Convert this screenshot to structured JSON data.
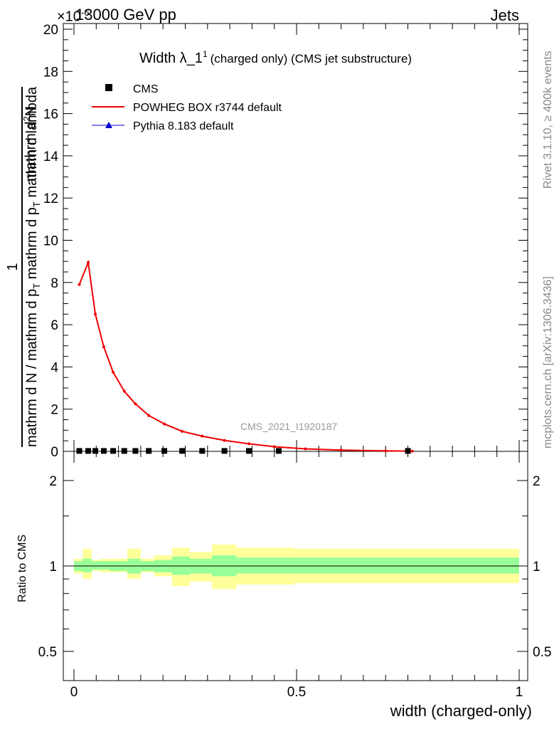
{
  "header": {
    "energy_label": "13000 GeV pp",
    "process_label": "Jets",
    "exponent_label": "×10",
    "exponent_power": "-6"
  },
  "side_labels": {
    "rivet": "Rivet 3.1.10, ≥ 400k events",
    "mcplots": "mcplots.cern.ch [arXiv:1306.3436]"
  },
  "plot": {
    "title_main": "Width λ_1",
    "title_sup": "1",
    "title_rest": "(charged only) (CMS jet substructure)",
    "watermark": "CMS_2021_I1920187",
    "legend": [
      {
        "label": "CMS",
        "marker": "square",
        "color": "#000000"
      },
      {
        "label": "POWHEG BOX r3744 default",
        "marker": "line",
        "color": "#ee0000"
      },
      {
        "label": "Pythia 8.183 default",
        "marker": "triangle",
        "color": "#0000cc"
      }
    ],
    "ylabel": {
      "numerator": "1",
      "num_denom": "mathrm d N / mathrm d p",
      "num_denom_sub": "T",
      "num_denom_end": " mathrm d p",
      "num_denom_sub2": "T",
      "num_denom_tail": " mathrm d lambda",
      "denominator_head": "mathrm d",
      "denominator_sup": "2",
      "denominator_tail": "N"
    },
    "ratio_ylabel": "Ratio to CMS",
    "xlabel": "width (charged-only)"
  },
  "chart_data": [
    {
      "type": "line",
      "panel": "main",
      "title": "Width λ_1^1 (charged only) (CMS jet substructure)",
      "xlabel": "width (charged-only)",
      "ylabel": "1 / (mathrm d N / mathrm d p_T mathrm d p_T mathrm d lambda) · mathrm d^2N",
      "y_scale_factor": "×10^-6",
      "xlim": [
        0,
        1
      ],
      "ylim": [
        0,
        20
      ],
      "x_ticks": [
        "0",
        "0.5",
        "1"
      ],
      "y_ticks": [
        "0",
        "2",
        "4",
        "6",
        "8",
        "10",
        "12",
        "14",
        "16",
        "18",
        "20"
      ],
      "series": [
        {
          "name": "POWHEG BOX r3744 default",
          "color": "#ee0000",
          "x": [
            0.012,
            0.032,
            0.048,
            0.067,
            0.088,
            0.113,
            0.138,
            0.168,
            0.203,
            0.243,
            0.288,
            0.338,
            0.393,
            0.45,
            0.52,
            0.6,
            0.7,
            0.76
          ],
          "values": [
            7.9,
            8.95,
            6.5,
            4.95,
            3.75,
            2.85,
            2.25,
            1.7,
            1.3,
            0.95,
            0.72,
            0.52,
            0.36,
            0.22,
            0.12,
            0.06,
            0.025,
            0.01
          ]
        },
        {
          "name": "CMS",
          "color": "#000000",
          "x": [
            0.012,
            0.032,
            0.048,
            0.067,
            0.088,
            0.113,
            0.138,
            0.168,
            0.203,
            0.243,
            0.288,
            0.338,
            0.393,
            0.46,
            0.75
          ],
          "values": [
            0.02,
            0.02,
            0.02,
            0.02,
            0.02,
            0.02,
            0.02,
            0.02,
            0.02,
            0.02,
            0.02,
            0.02,
            0.02,
            0.02,
            0.02
          ]
        }
      ]
    },
    {
      "type": "area",
      "panel": "ratio",
      "ylabel": "Ratio to CMS",
      "xlabel": "width (charged-only)",
      "xlim": [
        0,
        1
      ],
      "ylim": [
        0.4,
        2.4
      ],
      "y_scale": "log",
      "y_ticks": [
        "0.5",
        "1",
        "2"
      ],
      "reference": 1.0,
      "bins": [
        {
          "x0": 0.0,
          "x1": 0.02,
          "green": [
            0.96,
            1.04
          ],
          "yellow": [
            0.94,
            1.06
          ]
        },
        {
          "x0": 0.02,
          "x1": 0.04,
          "green": [
            0.95,
            1.06
          ],
          "yellow": [
            0.9,
            1.15
          ]
        },
        {
          "x0": 0.04,
          "x1": 0.06,
          "green": [
            0.97,
            1.04
          ],
          "yellow": [
            0.96,
            1.05
          ]
        },
        {
          "x0": 0.06,
          "x1": 0.08,
          "green": [
            0.97,
            1.04
          ],
          "yellow": [
            0.95,
            1.06
          ]
        },
        {
          "x0": 0.08,
          "x1": 0.12,
          "green": [
            0.96,
            1.04
          ],
          "yellow": [
            0.95,
            1.06
          ]
        },
        {
          "x0": 0.12,
          "x1": 0.15,
          "green": [
            0.94,
            1.06
          ],
          "yellow": [
            0.9,
            1.15
          ]
        },
        {
          "x0": 0.15,
          "x1": 0.18,
          "green": [
            0.96,
            1.04
          ],
          "yellow": [
            0.95,
            1.06
          ]
        },
        {
          "x0": 0.18,
          "x1": 0.22,
          "green": [
            0.95,
            1.05
          ],
          "yellow": [
            0.92,
            1.09
          ]
        },
        {
          "x0": 0.22,
          "x1": 0.26,
          "green": [
            0.93,
            1.08
          ],
          "yellow": [
            0.85,
            1.16
          ]
        },
        {
          "x0": 0.26,
          "x1": 0.31,
          "green": [
            0.94,
            1.06
          ],
          "yellow": [
            0.88,
            1.12
          ]
        },
        {
          "x0": 0.31,
          "x1": 0.365,
          "green": [
            0.92,
            1.09
          ],
          "yellow": [
            0.83,
            1.19
          ]
        },
        {
          "x0": 0.365,
          "x1": 0.495,
          "green": [
            0.94,
            1.07
          ],
          "yellow": [
            0.86,
            1.16
          ]
        },
        {
          "x0": 0.495,
          "x1": 1.0,
          "green": [
            0.94,
            1.07
          ],
          "yellow": [
            0.87,
            1.15
          ]
        }
      ]
    }
  ]
}
